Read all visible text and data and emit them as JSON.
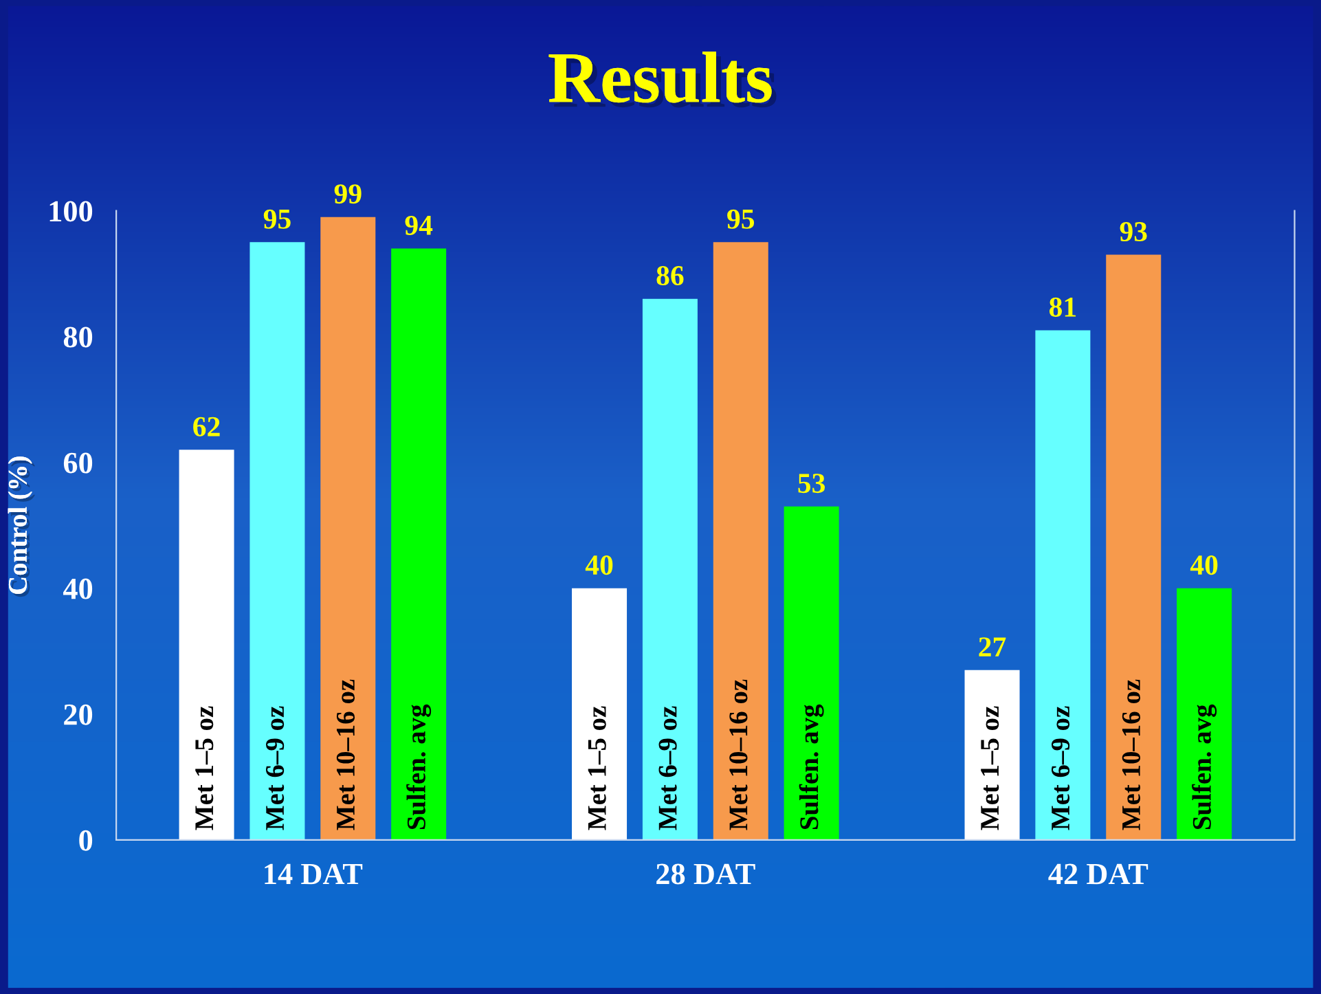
{
  "chart_data": {
    "type": "bar",
    "title": "Results",
    "ylabel": "Control (%)",
    "categories": [
      "14 DAT",
      "28 DAT",
      "42 DAT"
    ],
    "series": [
      {
        "name": "Met 1–5 oz",
        "color": "#ffffff",
        "values": [
          62,
          40,
          27
        ]
      },
      {
        "name": "Met 6–9 oz",
        "color": "#66ffff",
        "values": [
          95,
          86,
          81
        ]
      },
      {
        "name": "Met 10–16 oz",
        "color": "#f79a4c",
        "values": [
          99,
          95,
          93
        ]
      },
      {
        "name": "Sulfen. avg",
        "color": "#00ff00",
        "values": [
          94,
          53,
          40
        ]
      }
    ],
    "ylim": [
      0,
      100
    ],
    "yticks": [
      0,
      20,
      40,
      60,
      80,
      100
    ],
    "data_labels": true,
    "grid": false,
    "legend": false
  }
}
